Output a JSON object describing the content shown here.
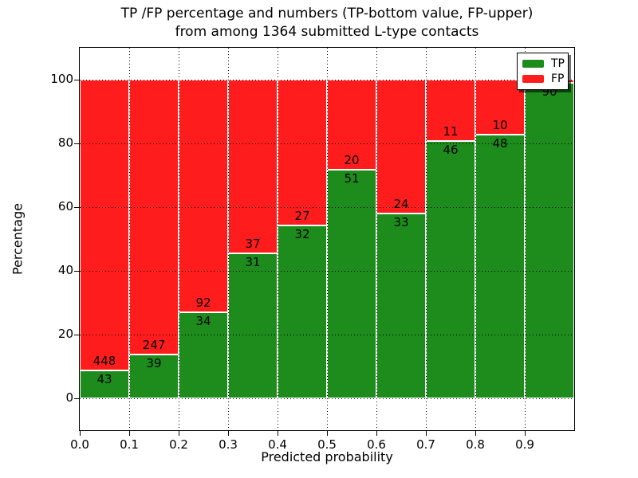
{
  "title": {
    "line1": "TP /FP percentage and numbers (TP-bottom value, FP-upper)",
    "line2": "from among 1364 submitted L-type contacts"
  },
  "axes": {
    "xlabel": "Predicted probability",
    "ylabel": "Percentage",
    "x_tick_labels": [
      "0.0",
      "0.1",
      "0.2",
      "0.3",
      "0.4",
      "0.5",
      "0.6",
      "0.7",
      "0.8",
      "0.9"
    ],
    "y_tick_labels": [
      "0",
      "20",
      "40",
      "60",
      "80",
      "100"
    ]
  },
  "legend": {
    "items": [
      {
        "label": "TP",
        "color": "#1d8c1d"
      },
      {
        "label": "FP",
        "color": "#ff1c1c"
      }
    ]
  },
  "colors": {
    "tp": "#1d8c1d",
    "fp": "#ff1c1c",
    "grid": "#000000"
  },
  "chart_data": {
    "type": "bar",
    "stacked": true,
    "normalized_to_percent": true,
    "title": "TP /FP percentage and numbers (TP-bottom value, FP-upper) from among 1364 submitted L-type contacts",
    "xlabel": "Predicted probability",
    "ylabel": "Percentage",
    "total_contacts": 1364,
    "xlim": [
      0.0,
      1.0
    ],
    "ylim": [
      -10,
      110
    ],
    "x_ticks": [
      0.0,
      0.1,
      0.2,
      0.3,
      0.4,
      0.5,
      0.6,
      0.7,
      0.8,
      0.9
    ],
    "y_ticks": [
      0,
      20,
      40,
      60,
      80,
      100
    ],
    "grid": "dotted both axes",
    "legend_position": "upper right",
    "bin_width": 0.1,
    "bins": [
      [
        0.0,
        0.1
      ],
      [
        0.1,
        0.2
      ],
      [
        0.2,
        0.3
      ],
      [
        0.3,
        0.4
      ],
      [
        0.4,
        0.5
      ],
      [
        0.5,
        0.6
      ],
      [
        0.6,
        0.7
      ],
      [
        0.7,
        0.8
      ],
      [
        0.8,
        0.9
      ],
      [
        0.9,
        1.0
      ]
    ],
    "series": [
      {
        "name": "TP",
        "color": "#1d8c1d",
        "counts": [
          43,
          39,
          34,
          31,
          32,
          51,
          33,
          46,
          48,
          90
        ]
      },
      {
        "name": "FP",
        "color": "#ff1c1c",
        "counts": [
          448,
          247,
          92,
          37,
          27,
          20,
          24,
          11,
          10,
          null
        ]
      }
    ],
    "tp_percent": [
      8.76,
      13.64,
      26.98,
      45.59,
      54.24,
      71.83,
      57.89,
      80.7,
      82.76,
      98.9
    ],
    "note": "Each bar totals 100%. Count labels sit at the green/red boundary (TP below, FP above). The FP count label of the 0.9-1.0 bar is hidden behind the legend box."
  }
}
